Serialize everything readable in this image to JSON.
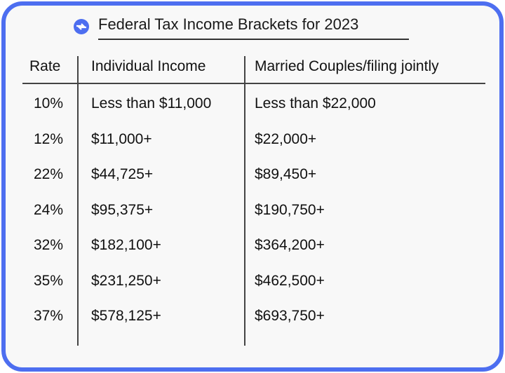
{
  "title": "Federal Tax Income Brackets for 2023",
  "logo_icon": "blue-circle-arrows-icon",
  "colors": {
    "border": "#4d6ef0",
    "background": "#f8f8f8"
  },
  "headers": [
    "Rate",
    "Individual Income",
    "Married Couples/filing jointly"
  ],
  "rows": [
    [
      "10%",
      "Less than $11,000",
      "Less than $22,000"
    ],
    [
      "12%",
      "$11,000+",
      "$22,000+"
    ],
    [
      "22%",
      "$44,725+",
      "$89,450+"
    ],
    [
      "24%",
      "$95,375+",
      "$190,750+"
    ],
    [
      "32%",
      "$182,100+",
      "$364,200+"
    ],
    [
      "35%",
      "$231,250+",
      "$462,500+"
    ],
    [
      "37%",
      "$578,125+",
      "$693,750+"
    ]
  ]
}
